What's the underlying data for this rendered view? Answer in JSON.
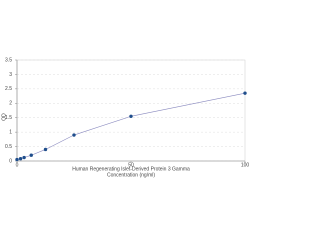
{
  "chart_data": {
    "type": "scatter",
    "title": "Human Regenerating Islet-Derived Protein 3 Gamma",
    "xlabel": "Concentration (ng/ml)",
    "ylabel": "OD",
    "x": [
      0,
      1.563,
      3.125,
      6.25,
      12.5,
      25,
      50,
      100
    ],
    "series": [
      {
        "name": "Standard",
        "color": "#1f4e8c",
        "line_color": "#8a8abf",
        "values": [
          0.05,
          0.08,
          0.12,
          0.2,
          0.4,
          0.9,
          1.55,
          2.35
        ]
      }
    ],
    "xlim": [
      0,
      100
    ],
    "xticks": [
      0,
      50,
      100
    ],
    "ylim": [
      0,
      3.5
    ],
    "yticks": [
      0,
      0.5,
      1,
      1.5,
      2,
      2.5,
      3,
      3.5
    ],
    "grid": true
  }
}
